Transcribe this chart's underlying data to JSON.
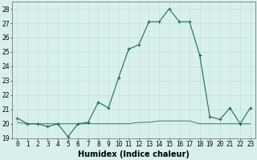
{
  "title": "",
  "xlabel": "Humidex (Indice chaleur)",
  "x": [
    0,
    1,
    2,
    3,
    4,
    5,
    6,
    7,
    8,
    9,
    10,
    11,
    12,
    13,
    14,
    15,
    16,
    17,
    18,
    19,
    20,
    21,
    22,
    23
  ],
  "y_main": [
    20.4,
    20.0,
    20.0,
    19.8,
    20.0,
    19.1,
    20.0,
    20.1,
    21.5,
    21.1,
    23.2,
    25.2,
    25.5,
    27.1,
    27.1,
    28.0,
    27.1,
    27.1,
    24.8,
    20.5,
    20.3,
    21.1,
    20.0,
    21.1
  ],
  "y_flat": [
    20.1,
    20.0,
    20.0,
    20.0,
    20.0,
    20.0,
    20.0,
    20.0,
    20.0,
    20.0,
    20.0,
    20.0,
    20.1,
    20.1,
    20.2,
    20.2,
    20.2,
    20.2,
    20.0,
    20.0,
    20.0,
    20.0,
    20.0,
    20.0
  ],
  "line_color": "#1a6b5a",
  "bg_color": "#d8f0ec",
  "grid_color": "#b8ddd8",
  "ylim": [
    19.0,
    28.5
  ],
  "yticks": [
    19,
    20,
    21,
    22,
    23,
    24,
    25,
    26,
    27,
    28
  ],
  "xticks": [
    0,
    1,
    2,
    3,
    4,
    5,
    6,
    7,
    8,
    9,
    10,
    11,
    12,
    13,
    14,
    15,
    16,
    17,
    18,
    19,
    20,
    21,
    22,
    23
  ],
  "xlabel_fontsize": 7,
  "tick_fontsize": 5.5
}
